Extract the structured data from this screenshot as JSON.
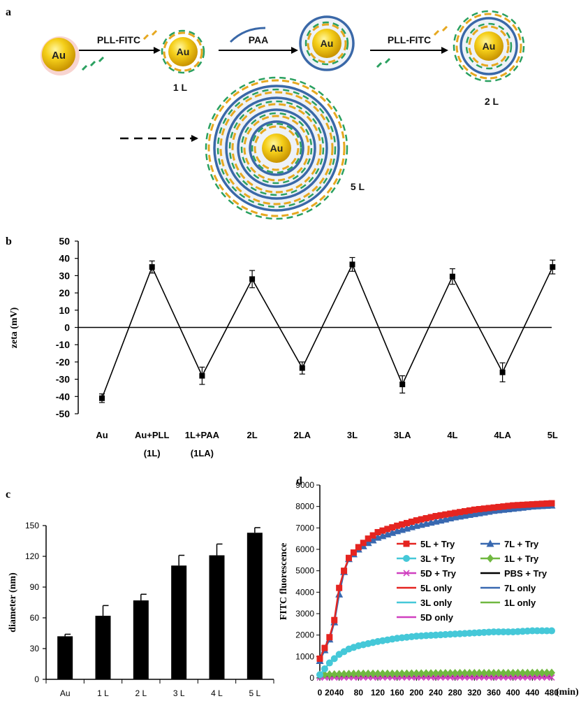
{
  "panel_labels": {
    "a": "a",
    "b": "b",
    "c": "c",
    "d": "d"
  },
  "schematic": {
    "core": "Au",
    "steps": [
      "PLL-FITC",
      "PAA",
      "PLL-FITC"
    ],
    "layer_labels": [
      "1 L",
      "2 L",
      "5 L"
    ],
    "colors": {
      "gold": "#f2c200",
      "paa": "#3a68a8",
      "pll": "#e6a820",
      "fitc": "#2aa060"
    }
  },
  "chart_data": [
    {
      "panel": "b",
      "type": "line",
      "ylabel": "zeta (mV)",
      "ylim": [
        -50,
        50
      ],
      "yticks": [
        50,
        40,
        30,
        20,
        10,
        0,
        -10,
        -20,
        -30,
        -40,
        -50
      ],
      "categories": [
        [
          "Au"
        ],
        [
          "Au+PLL",
          "(1L)"
        ],
        [
          "1L+PAA",
          "(1LA)"
        ],
        [
          "2L"
        ],
        [
          "2LA"
        ],
        [
          "3L"
        ],
        [
          "3LA"
        ],
        [
          "4L"
        ],
        [
          "4LA"
        ],
        [
          "5L"
        ]
      ],
      "values": [
        -41,
        35,
        -28,
        28,
        -23.5,
        36.5,
        -33,
        29.5,
        -26,
        35
      ],
      "errors": [
        2.5,
        3.5,
        5,
        5,
        3.5,
        4,
        5,
        4.5,
        5.5,
        4
      ],
      "zero_line": true
    },
    {
      "panel": "c",
      "type": "bar",
      "ylabel": "diameter (nm)",
      "ylim": [
        0,
        150
      ],
      "yticks": [
        0,
        30,
        60,
        90,
        120,
        150
      ],
      "categories": [
        "Au",
        "1 L",
        "2 L",
        "3 L",
        "4 L",
        "5 L"
      ],
      "values": [
        42,
        62,
        77,
        111,
        121,
        143
      ],
      "errors": [
        2,
        10,
        6,
        10,
        11,
        5
      ]
    },
    {
      "panel": "d",
      "type": "line",
      "ylabel": "FITC fluorescence",
      "xlabel": "(min)",
      "xlim": [
        0,
        480
      ],
      "ylim": [
        0,
        9000
      ],
      "xticks": [
        0,
        20,
        40,
        80,
        120,
        160,
        200,
        240,
        280,
        320,
        360,
        400,
        440,
        480
      ],
      "yticks": [
        0,
        1000,
        2000,
        3000,
        4000,
        5000,
        6000,
        7000,
        8000,
        9000
      ],
      "series": [
        {
          "name": "5L + Try",
          "color": "#e52420",
          "marker": "square",
          "x": [
            0,
            20,
            30,
            40,
            50,
            60,
            80,
            100,
            120,
            160,
            200,
            240,
            280,
            320,
            360,
            400,
            440,
            480
          ],
          "y": [
            900,
            1900,
            2700,
            4200,
            5000,
            5600,
            6100,
            6500,
            6800,
            7100,
            7350,
            7550,
            7700,
            7850,
            7950,
            8050,
            8100,
            8150
          ]
        },
        {
          "name": "7L + Try",
          "color": "#3868b0",
          "marker": "triangle",
          "x": [
            0,
            20,
            30,
            40,
            50,
            60,
            80,
            100,
            120,
            160,
            200,
            240,
            280,
            320,
            360,
            400,
            440,
            480
          ],
          "y": [
            800,
            1800,
            2600,
            3900,
            4950,
            5550,
            6000,
            6300,
            6550,
            6850,
            7100,
            7300,
            7500,
            7650,
            7800,
            7900,
            8000,
            8050
          ]
        },
        {
          "name": "3L + Try",
          "color": "#45c8d8",
          "marker": "circle",
          "x": [
            0,
            20,
            40,
            60,
            80,
            120,
            160,
            200,
            240,
            280,
            320,
            360,
            400,
            440,
            480
          ],
          "y": [
            150,
            700,
            1100,
            1350,
            1500,
            1700,
            1850,
            1950,
            2000,
            2050,
            2100,
            2150,
            2150,
            2200,
            2200
          ]
        },
        {
          "name": "1L + Try",
          "color": "#70b840",
          "marker": "diamond",
          "x": [
            0,
            80,
            160,
            240,
            320,
            400,
            480
          ],
          "y": [
            150,
            200,
            200,
            220,
            230,
            230,
            240
          ]
        },
        {
          "name": "5D + Try",
          "color": "#d040c0",
          "marker": "x",
          "x": [
            0,
            80,
            160,
            240,
            320,
            400,
            480
          ],
          "y": [
            20,
            20,
            20,
            20,
            20,
            20,
            20
          ]
        },
        {
          "name": "PBS + Try",
          "color": "#000000",
          "marker": "none",
          "x": [
            0,
            480
          ],
          "y": [
            60,
            60
          ]
        },
        {
          "name": "5L only",
          "color": "#e52420",
          "marker": "none",
          "x": [
            0,
            480
          ],
          "y": [
            180,
            180
          ]
        },
        {
          "name": "7L only",
          "color": "#3868b0",
          "marker": "none",
          "x": [
            0,
            480
          ],
          "y": [
            170,
            170
          ]
        },
        {
          "name": "3L only",
          "color": "#45c8d8",
          "marker": "none",
          "x": [
            0,
            480
          ],
          "y": [
            140,
            140
          ]
        },
        {
          "name": "1L only",
          "color": "#70b840",
          "marker": "none",
          "x": [
            0,
            480
          ],
          "y": [
            120,
            120
          ]
        },
        {
          "name": "5D only",
          "color": "#d040c0",
          "marker": "none",
          "x": [
            0,
            480
          ],
          "y": [
            10,
            10
          ]
        }
      ]
    }
  ]
}
